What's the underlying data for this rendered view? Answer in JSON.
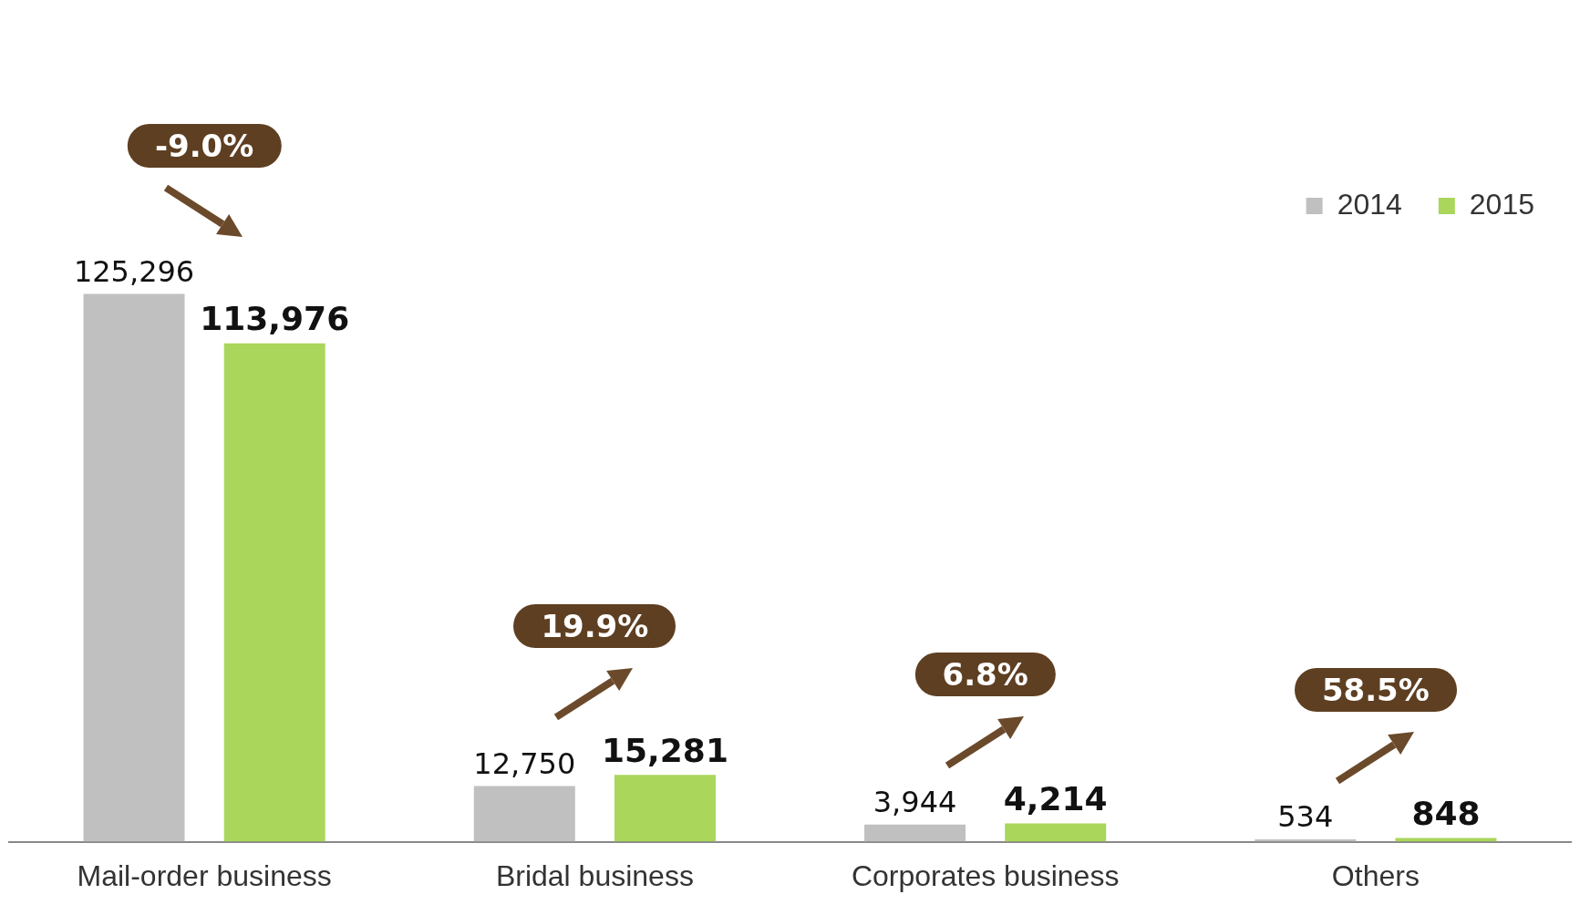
{
  "chart_data": {
    "type": "bar",
    "categories": [
      "Mail-order business",
      "Bridal business",
      "Corporates business",
      "Others"
    ],
    "series": [
      {
        "name": "2014",
        "color": "#c0c0c0",
        "values": [
          125296,
          12750,
          3944,
          534
        ],
        "value_labels": [
          "125,296",
          "12,750",
          "3,944",
          "534"
        ]
      },
      {
        "name": "2015",
        "color": "#a9d65b",
        "values": [
          113976,
          15281,
          4214,
          848
        ],
        "value_labels": [
          "113,976",
          "15,281",
          "4,214",
          "848"
        ]
      }
    ],
    "tick_labels": "x",
    "grid": false,
    "legend": "top right",
    "annotations": [
      "-9.0%",
      "19.9%",
      "6.8%",
      "58.5%"
    ]
  }
}
